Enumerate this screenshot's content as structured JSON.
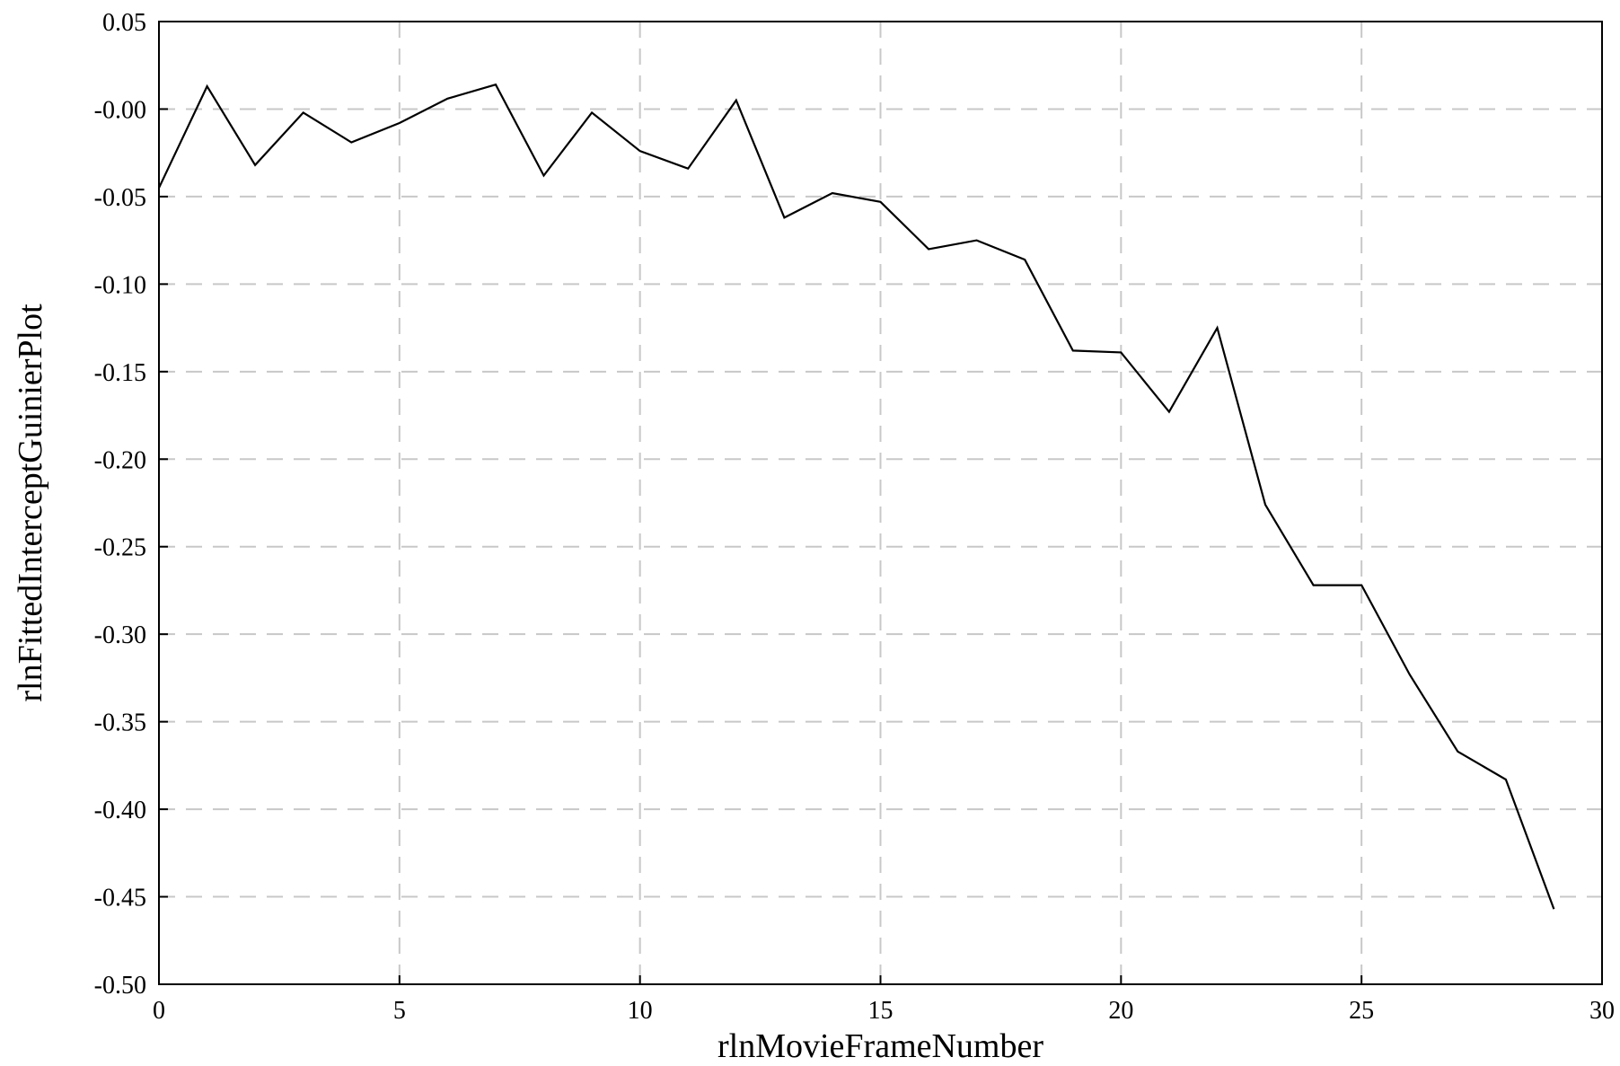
{
  "chart_data": {
    "type": "line",
    "title": "",
    "xlabel": "rlnMovieFrameNumber",
    "ylabel": "rlnFittedInterceptGuinierPlot",
    "xlim": [
      0,
      30
    ],
    "ylim": [
      -0.5,
      0.05
    ],
    "x_ticks": [
      0,
      5,
      10,
      15,
      20,
      25,
      30
    ],
    "x_tick_labels": [
      "0",
      "5",
      "10",
      "15",
      "20",
      "25",
      "30"
    ],
    "y_ticks": [
      0.05,
      0.0,
      -0.05,
      -0.1,
      -0.15,
      -0.2,
      -0.25,
      -0.3,
      -0.35,
      -0.4,
      -0.45,
      -0.5
    ],
    "y_tick_labels": [
      "0.05",
      "-0.00",
      "-0.05",
      "-0.10",
      "-0.15",
      "-0.20",
      "-0.25",
      "-0.30",
      "-0.35",
      "-0.40",
      "-0.45",
      "-0.50"
    ],
    "grid": true,
    "grid_style": "dashed",
    "colors": {
      "line": "#000000",
      "grid": "#c8c8c8",
      "axis": "#000000"
    },
    "series": [
      {
        "x": [
          0,
          1,
          2,
          3,
          4,
          5,
          6,
          7,
          8,
          9,
          10,
          11,
          12,
          13,
          14,
          15,
          16,
          17,
          18,
          19,
          20,
          21,
          22,
          23,
          24,
          25,
          26,
          27,
          28,
          29
        ],
        "values": [
          -0.045,
          0.013,
          -0.032,
          -0.002,
          -0.019,
          -0.008,
          0.006,
          0.014,
          -0.038,
          -0.002,
          -0.024,
          -0.034,
          0.005,
          -0.062,
          -0.048,
          -0.053,
          -0.08,
          -0.075,
          -0.086,
          -0.138,
          -0.139,
          -0.173,
          -0.125,
          -0.226,
          -0.272,
          -0.272,
          -0.323,
          -0.367,
          -0.383,
          -0.457
        ]
      }
    ]
  }
}
